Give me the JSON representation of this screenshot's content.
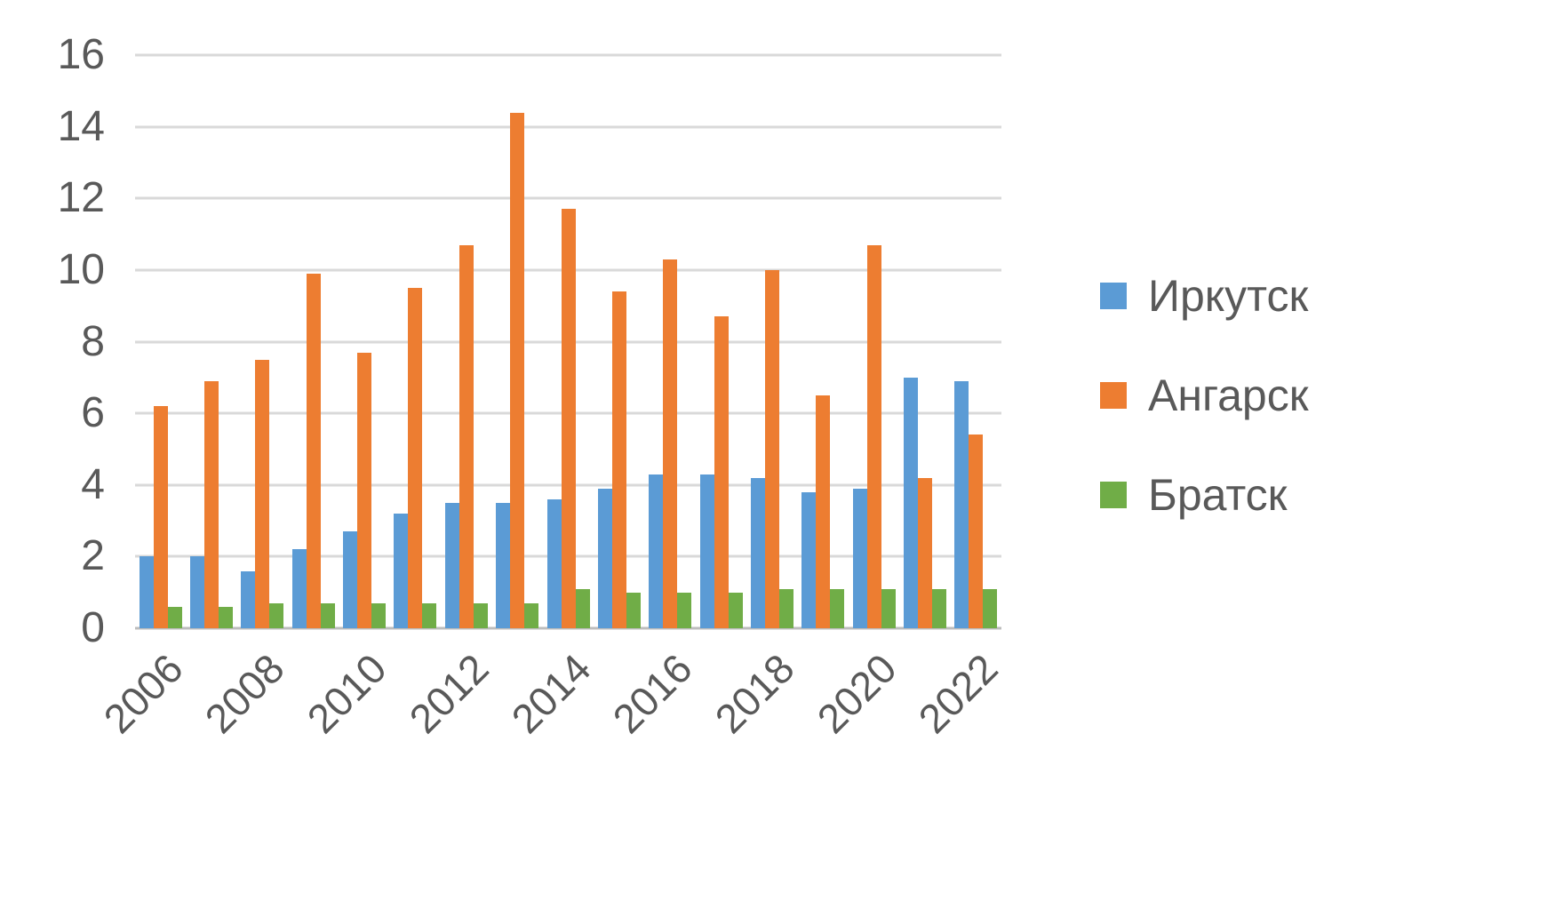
{
  "chart_data": {
    "type": "bar",
    "title": "",
    "xlabel": "",
    "ylabel": "",
    "categories": [
      2006,
      2007,
      2008,
      2009,
      2010,
      2011,
      2012,
      2013,
      2014,
      2015,
      2016,
      2017,
      2018,
      2019,
      2020,
      2021,
      2022
    ],
    "x_tick_labels": [
      "2006",
      "2008",
      "2010",
      "2012",
      "2014",
      "2016",
      "2018",
      "2020",
      "2022"
    ],
    "series": [
      {
        "name": "Иркутск",
        "color": "#5B9BD5",
        "values": [
          2.0,
          2.0,
          1.6,
          2.2,
          2.7,
          3.2,
          3.5,
          3.5,
          3.6,
          3.9,
          4.3,
          4.3,
          4.2,
          3.8,
          3.9,
          7.0,
          6.9
        ]
      },
      {
        "name": "Ангарск",
        "color": "#ED7D31",
        "values": [
          6.2,
          6.9,
          7.5,
          9.9,
          7.7,
          9.5,
          10.7,
          14.4,
          11.7,
          9.4,
          10.3,
          8.7,
          10.0,
          6.5,
          10.7,
          4.2,
          5.4
        ]
      },
      {
        "name": "Братск",
        "color": "#70AD47",
        "values": [
          0.6,
          0.6,
          0.7,
          0.7,
          0.7,
          0.7,
          0.7,
          0.7,
          1.1,
          1.0,
          1.0,
          1.0,
          1.1,
          1.1,
          1.1,
          1.1,
          1.1
        ]
      }
    ],
    "ylim": [
      0,
      16
    ],
    "ytick_step": 2,
    "grid": "horizontal",
    "legend_position": "right",
    "axis_text_color": "#595959",
    "gridline_color": "#d9d9d9"
  }
}
